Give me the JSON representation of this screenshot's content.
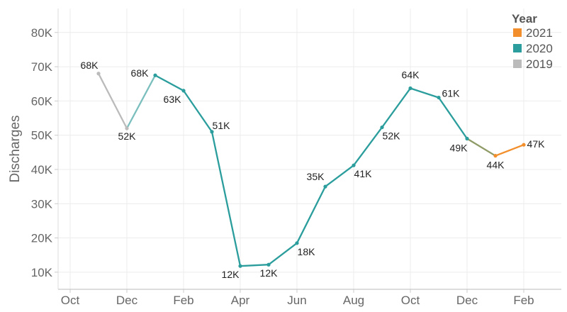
{
  "chart_data": {
    "type": "line",
    "ylabel": "Discharges",
    "ylim": [
      5000,
      87000
    ],
    "y_ticks": [
      {
        "value": 10000,
        "label": "10K"
      },
      {
        "value": 20000,
        "label": "20K"
      },
      {
        "value": 30000,
        "label": "30K"
      },
      {
        "value": 40000,
        "label": "40K"
      },
      {
        "value": 50000,
        "label": "50K"
      },
      {
        "value": 60000,
        "label": "60K"
      },
      {
        "value": 70000,
        "label": "70K"
      },
      {
        "value": 80000,
        "label": "80K"
      }
    ],
    "x_ticks": [
      {
        "month": "2019-10",
        "label": "Oct"
      },
      {
        "month": "2019-12",
        "label": "Dec"
      },
      {
        "month": "2020-02",
        "label": "Feb"
      },
      {
        "month": "2020-04",
        "label": "Apr"
      },
      {
        "month": "2020-06",
        "label": "Jun"
      },
      {
        "month": "2020-08",
        "label": "Aug"
      },
      {
        "month": "2020-10",
        "label": "Oct"
      },
      {
        "month": "2020-12",
        "label": "Dec"
      },
      {
        "month": "2021-02",
        "label": "Feb"
      }
    ],
    "grid": true,
    "legend": {
      "title": "Year",
      "position": "top-right"
    },
    "series": [
      {
        "name": "2021",
        "color": "#F28E2B",
        "points": [
          {
            "month": "2021-01",
            "value": 44000,
            "label": "44K"
          },
          {
            "month": "2021-02",
            "value": 47200,
            "label": "47K"
          }
        ]
      },
      {
        "name": "2020",
        "color": "#2A9D9C",
        "points": [
          {
            "month": "2020-01",
            "value": 67500,
            "label": "68K"
          },
          {
            "month": "2020-02",
            "value": 63000,
            "label": "63K"
          },
          {
            "month": "2020-03",
            "value": 51000,
            "label": "51K"
          },
          {
            "month": "2020-04",
            "value": 11800,
            "label": "12K"
          },
          {
            "month": "2020-05",
            "value": 12200,
            "label": "12K"
          },
          {
            "month": "2020-06",
            "value": 18500,
            "label": "18K"
          },
          {
            "month": "2020-07",
            "value": 35000,
            "label": "35K"
          },
          {
            "month": "2020-08",
            "value": 41200,
            "label": "41K"
          },
          {
            "month": "2020-09",
            "value": 52300,
            "label": "52K"
          },
          {
            "month": "2020-10",
            "value": 63700,
            "label": "64K"
          },
          {
            "month": "2020-11",
            "value": 61000,
            "label": "61K"
          },
          {
            "month": "2020-12",
            "value": 49000,
            "label": "49K"
          }
        ]
      },
      {
        "name": "2019",
        "color": "#BBBBBB",
        "points": [
          {
            "month": "2019-11",
            "value": 68000,
            "label": "68K"
          },
          {
            "month": "2019-12",
            "value": 52000,
            "label": "52K"
          }
        ]
      }
    ]
  }
}
